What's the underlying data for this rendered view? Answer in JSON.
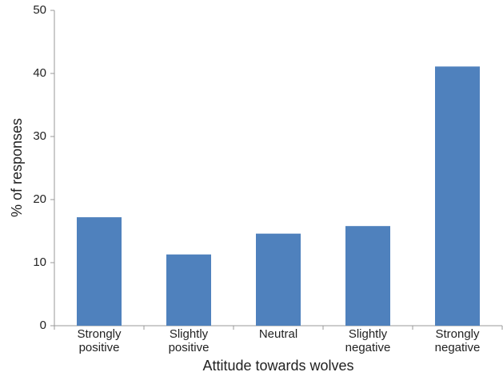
{
  "chart_data": {
    "type": "bar",
    "y_label": "% of responses",
    "x_label": "Attitude towards wolves",
    "categories": [
      "Strongly positive",
      "Slightly positive",
      "Neutral",
      "Slightly negative",
      "Strongly negative"
    ],
    "values": [
      17.2,
      11.3,
      14.6,
      15.8,
      41.1
    ],
    "color": "#4f81bd",
    "ylim": [
      0,
      50
    ],
    "yticks": [
      0,
      10,
      20,
      30,
      40,
      50
    ],
    "grid": false
  }
}
